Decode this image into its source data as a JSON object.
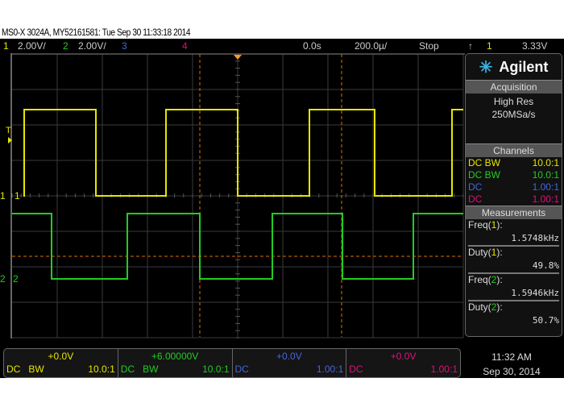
{
  "title": "MS0-X 3024A, MY52161581: Tue Sep 30 11:33:18 2014",
  "colors": {
    "ch1": "#e6e600",
    "ch2": "#22cc22",
    "ch3": "#4466dd",
    "ch4": "#dd1177",
    "cursor": "#e07000",
    "grid": "#3a3a3a"
  },
  "topbar": {
    "ch1_num": "1",
    "ch1_scale": "2.00V/",
    "ch2_num": "2",
    "ch2_scale": "2.00V/",
    "ch3_num": "3",
    "ch4_num": "4",
    "delay": "0.0s",
    "timebase": "200.0µ/",
    "run_state": "Stop",
    "trigger_icon": "rising-edge-icon",
    "trigger_source": "1",
    "trigger_level": "3.33V"
  },
  "brand": {
    "name": "Agilent",
    "logo": "agilent-spark-icon"
  },
  "acquisition": {
    "header": "Acquisition",
    "mode": "High Res",
    "rate": "250MSa/s"
  },
  "channels": {
    "header": "Channels",
    "rows": [
      {
        "coupling": "DC BW",
        "probe": "10.0:1"
      },
      {
        "coupling": "DC BW",
        "probe": "10.0:1"
      },
      {
        "coupling": "DC",
        "probe": "1.00:1"
      },
      {
        "coupling": "DC",
        "probe": "1.00:1"
      }
    ]
  },
  "measurements": {
    "header": "Measurements",
    "items": [
      {
        "name": "Freq(",
        "ch": "1",
        "close": "):",
        "value": "1.5748kHz"
      },
      {
        "name": "Duty(",
        "ch": "1",
        "close": "):",
        "value": "49.8%"
      },
      {
        "name": "Freq(",
        "ch": "2",
        "close": "):",
        "value": "1.5946kHz"
      },
      {
        "name": "Duty(",
        "ch": "2",
        "close": "):",
        "value": "50.7%"
      }
    ]
  },
  "markers": {
    "trigger": "T",
    "ch1": "1",
    "ch2": "2"
  },
  "bottom": [
    {
      "offset": "+0.0V",
      "coupling": "DC",
      "bw": "BW",
      "probe": "10.0:1"
    },
    {
      "offset": "+6.00000V",
      "coupling": "DC",
      "bw": "BW",
      "probe": "10.0:1"
    },
    {
      "offset": "+0.0V",
      "coupling": "DC",
      "bw": "",
      "probe": "1.00:1"
    },
    {
      "offset": "+0.0V",
      "coupling": "DC",
      "bw": "",
      "probe": "1.00:1"
    }
  ],
  "clock": {
    "time": "11:32 AM",
    "date": "Sep 30, 2014"
  }
}
